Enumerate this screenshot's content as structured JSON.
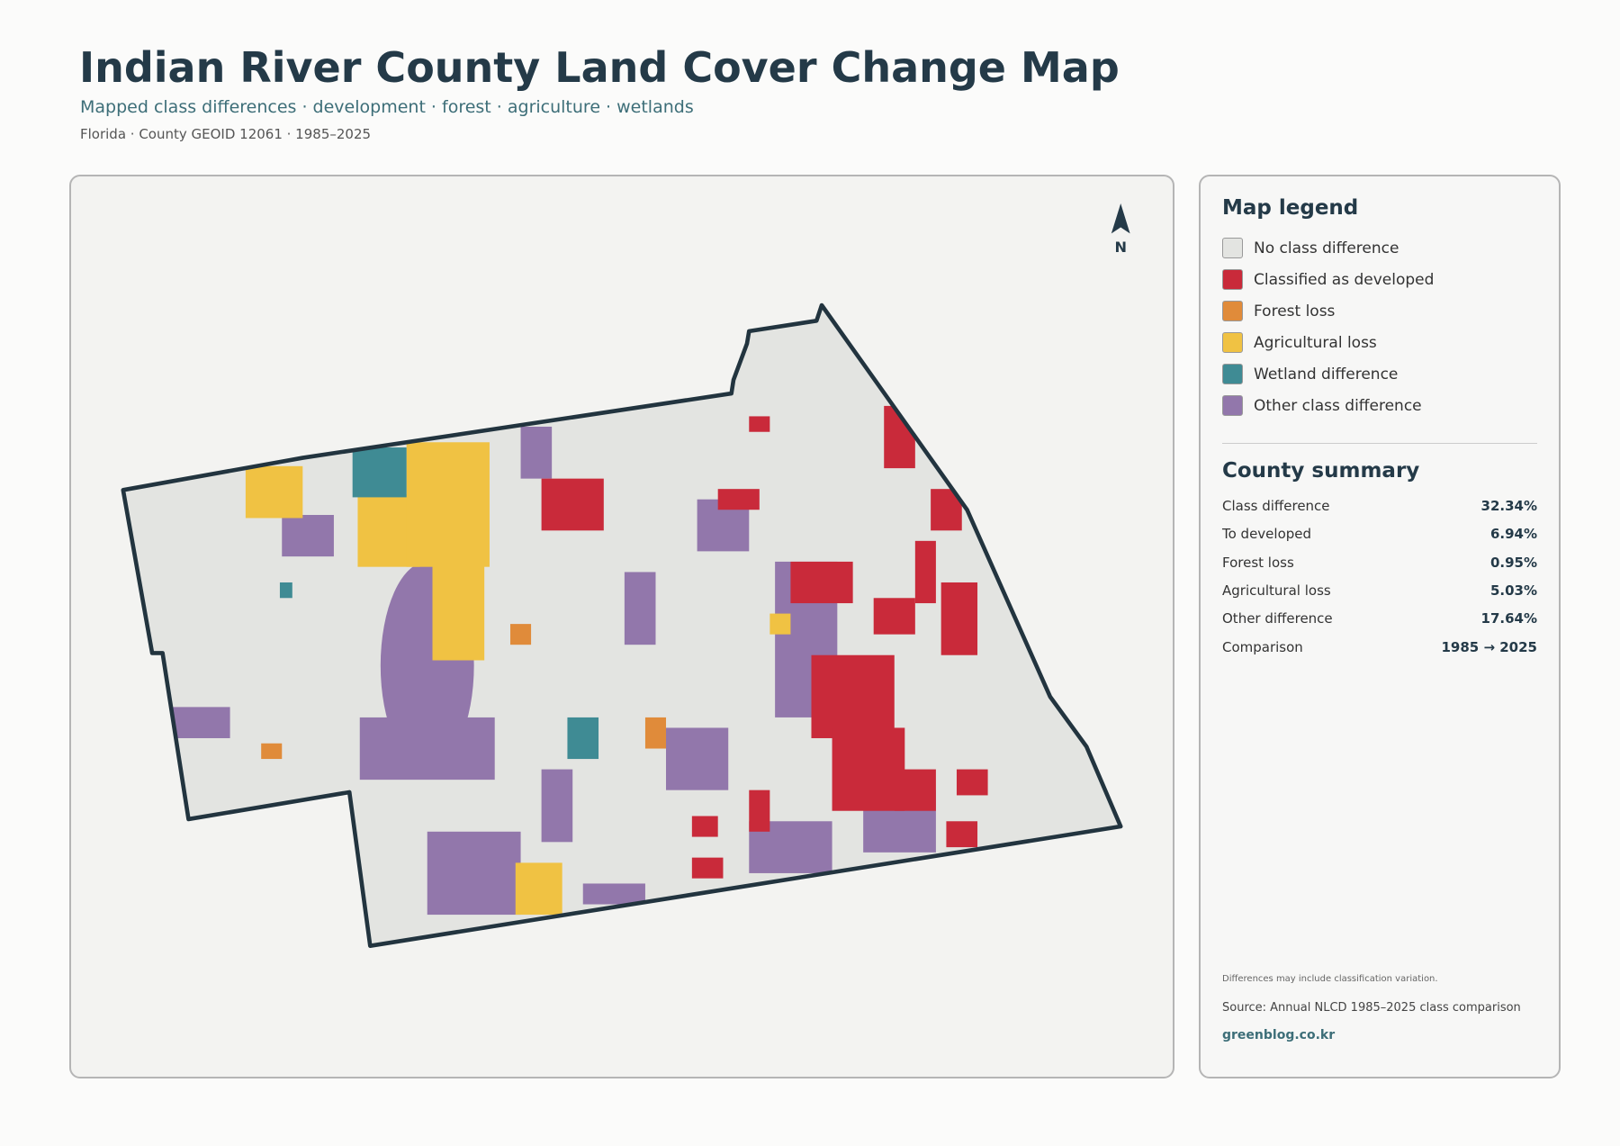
{
  "header": {
    "title": "Indian River County Land Cover Change Map",
    "subtitle": "Mapped class differences · development · forest · agriculture · wetlands",
    "meta": "Florida · County GEOID 12061 · 1985–2025"
  },
  "map": {
    "north_label": "N"
  },
  "legend": {
    "title": "Map legend",
    "items": [
      {
        "label": "No class difference",
        "color": "#e3e4e1"
      },
      {
        "label": "Classified as developed",
        "color": "#c92a3a"
      },
      {
        "label": "Forest loss",
        "color": "#e08b3a"
      },
      {
        "label": "Agricultural loss",
        "color": "#f0c243"
      },
      {
        "label": "Wetland difference",
        "color": "#3f8b94"
      },
      {
        "label": "Other class difference",
        "color": "#9277ab"
      }
    ]
  },
  "summary": {
    "title": "County summary",
    "rows": [
      [
        "Class difference",
        "32.34%"
      ],
      [
        "To developed",
        "6.94%"
      ],
      [
        "Forest loss",
        "0.95%"
      ],
      [
        "Agricultural loss",
        "5.03%"
      ],
      [
        "Other difference",
        "17.64%"
      ],
      [
        "Comparison",
        "1985 → 2025"
      ]
    ]
  },
  "footer": {
    "note": "Differences may include classification variation.",
    "source": "Source: Annual NLCD 1985–2025 class comparison",
    "site": "greenblog.co.kr"
  }
}
